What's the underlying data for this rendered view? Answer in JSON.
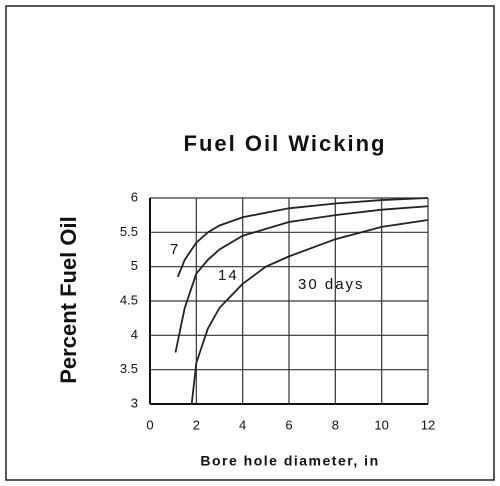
{
  "chart_data": {
    "type": "line",
    "title": "Fuel Oil Wicking",
    "xlabel": "Bore hole diameter, in",
    "ylabel": "Percent Fuel Oil",
    "xlim": [
      0,
      12
    ],
    "xticks": [
      0,
      2,
      4,
      6,
      8,
      10,
      12
    ],
    "ylim": [
      3,
      6
    ],
    "yticks": [
      3,
      3.5,
      4,
      4.5,
      5,
      5.5,
      6
    ],
    "grid": true,
    "series": [
      {
        "name": "7",
        "color": "#222",
        "x": [
          1.2,
          1.5,
          2,
          2.5,
          3,
          4,
          6,
          8,
          10,
          12
        ],
        "values": [
          4.85,
          5.1,
          5.35,
          5.5,
          5.6,
          5.72,
          5.85,
          5.92,
          5.97,
          6.0
        ]
      },
      {
        "name": "14",
        "color": "#222",
        "x": [
          1.1,
          1.5,
          2,
          2.5,
          3,
          4,
          6,
          8,
          10,
          12
        ],
        "values": [
          3.75,
          4.4,
          4.9,
          5.1,
          5.25,
          5.45,
          5.65,
          5.75,
          5.83,
          5.88
        ]
      },
      {
        "name": "30 days",
        "color": "#222",
        "x": [
          1.8,
          2,
          2.5,
          3,
          4,
          5,
          6,
          8,
          10,
          12
        ],
        "values": [
          3.0,
          3.6,
          4.1,
          4.4,
          4.75,
          5.0,
          5.15,
          5.4,
          5.58,
          5.68
        ]
      }
    ]
  }
}
